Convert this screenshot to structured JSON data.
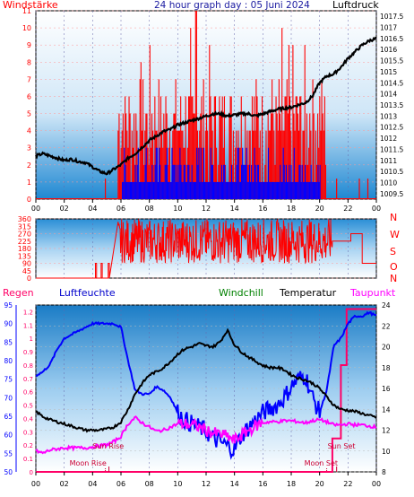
{
  "header": {
    "left_label": "Windstärke",
    "title": "24 hour graph day : 05 Juni 2024",
    "right_label": "Luftdruck"
  },
  "bottom_header": {
    "regen": "Regen",
    "luftfeuchte": "Luftfeuchte",
    "windchill": "Windchill",
    "temperatur": "Temperatur",
    "taupunkt": "Taupunkt"
  },
  "colors": {
    "wind_gust": "#ff0000",
    "wind_avg": "#0000ff",
    "pressure": "#000000",
    "direction": "#ff0000",
    "humidity": "#0000ff",
    "temperature": "#000000",
    "dewpoint": "#ff00ff",
    "rain": "#ff0066",
    "windchill": "#008000",
    "axis_left_top": "#ff0000",
    "axis_right_top": "#000000",
    "axis_rain": "#ff0066",
    "axis_humidity": "#0000ff",
    "axis_temp": "#000000",
    "background_top": "#ffffff",
    "background_bottom": "#1f86c8"
  },
  "chart_data": [
    {
      "type": "line",
      "name": "wind-pressure",
      "x_ticks": [
        "00",
        "02",
        "04",
        "06",
        "08",
        "10",
        "12",
        "14",
        "16",
        "18",
        "20",
        "22",
        "00"
      ],
      "wind_axis": {
        "ylim": [
          0,
          11
        ],
        "ticks": [
          "0",
          "1",
          "2",
          "3",
          "4",
          "5",
          "6",
          "7",
          "8",
          "9",
          "10",
          "11"
        ]
      },
      "pressure_axis": {
        "ylim": [
          1009.25,
          1017.75
        ],
        "ticks": [
          "1009.5",
          "1010",
          "1010.5",
          "1011",
          "1011.5",
          "1012",
          "1012.5",
          "1013",
          "1013.5",
          "1014",
          "1014.5",
          "1015",
          "1015.5",
          "1016",
          "1016.5",
          "1017",
          "1017.5"
        ]
      },
      "pressure": {
        "x": [
          0,
          0.5,
          1,
          1.5,
          2,
          2.5,
          3,
          3.5,
          4,
          4.5,
          5,
          5.5,
          6,
          6.5,
          7,
          7.5,
          8,
          8.5,
          9,
          9.5,
          10,
          10.5,
          11,
          11.5,
          12,
          12.5,
          13,
          13.5,
          14,
          14.5,
          15,
          15.5,
          16,
          16.5,
          17,
          17.5,
          18,
          18.5,
          19,
          19.5,
          20,
          20.5,
          21,
          21.5,
          22,
          22.5,
          23,
          23.5,
          24
        ],
        "y": [
          1011.2,
          1011.3,
          1011.2,
          1011.1,
          1011.0,
          1011.05,
          1010.95,
          1010.9,
          1010.7,
          1010.5,
          1010.4,
          1010.6,
          1010.8,
          1011.1,
          1011.3,
          1011.6,
          1011.9,
          1012.1,
          1012.3,
          1012.4,
          1012.6,
          1012.7,
          1012.8,
          1012.9,
          1013.0,
          1013.1,
          1013.1,
          1013.0,
          1013.05,
          1013.1,
          1013.1,
          1013.0,
          1013.1,
          1013.2,
          1013.3,
          1013.35,
          1013.4,
          1013.5,
          1013.6,
          1013.9,
          1014.5,
          1014.8,
          1014.9,
          1015.2,
          1015.6,
          1015.9,
          1016.2,
          1016.4,
          1016.5
        ]
      },
      "gust_peak": 11,
      "gust_active_hours": [
        5.8,
        20.5
      ],
      "avg_max": 4
    },
    {
      "type": "line",
      "name": "wind-direction",
      "x_ticks": [
        "00",
        "02",
        "04",
        "06",
        "08",
        "10",
        "12",
        "14",
        "16",
        "18",
        "20",
        "22",
        "00"
      ],
      "y_axis": {
        "ylim": [
          0,
          360
        ],
        "ticks": [
          "0",
          "45",
          "90",
          "135",
          "180",
          "225",
          "270",
          "315",
          "360"
        ]
      },
      "compass_labels": [
        "N",
        "W",
        "S",
        "O",
        "N"
      ],
      "early_spikes_hours": [
        4.2,
        4.6,
        5.1
      ],
      "calm_after_hour": 20.9,
      "tail": {
        "x": [
          20.9,
          22.2,
          22.2,
          23.0,
          23.0,
          24
        ],
        "y": [
          225,
          225,
          270,
          270,
          90,
          90
        ]
      }
    },
    {
      "type": "line",
      "name": "humidity-temperature",
      "x_ticks": [
        "00",
        "02",
        "04",
        "06",
        "08",
        "10",
        "12",
        "14",
        "16",
        "18",
        "20",
        "22",
        "00"
      ],
      "rain_axis": {
        "ylim": [
          0,
          1.25
        ],
        "ticks": [
          "0",
          "0.1",
          "0.2",
          "0.3",
          "0.4",
          "0.5",
          "0.6",
          "0.7",
          "0.8",
          "0.9",
          "1",
          "1.1",
          "1.2"
        ]
      },
      "humidity_axis": {
        "ylim": [
          50,
          95
        ],
        "ticks": [
          "50",
          "55",
          "60",
          "65",
          "70",
          "75",
          "80",
          "85",
          "90",
          "95"
        ]
      },
      "temp_axis": {
        "ylim": [
          8,
          24
        ],
        "ticks": [
          "8",
          "10",
          "12",
          "14",
          "16",
          "18",
          "20",
          "22",
          "24"
        ]
      },
      "humidity": {
        "x": [
          0,
          0.5,
          1,
          1.5,
          2,
          2.5,
          3,
          3.5,
          4,
          4.5,
          5,
          5.5,
          6,
          6.5,
          7,
          7.5,
          8,
          8.5,
          9,
          9.5,
          10,
          10.5,
          11,
          11.5,
          12,
          12.5,
          13,
          13.5,
          14,
          14.5,
          15,
          15.5,
          16,
          16.5,
          17,
          17.5,
          18,
          18.5,
          19,
          19.5,
          20,
          20.5,
          21,
          21.5,
          22,
          22.5,
          23,
          23.5,
          24
        ],
        "y": [
          76,
          77,
          79,
          83,
          86,
          87,
          88,
          89,
          90,
          90,
          90,
          90,
          89,
          80,
          72,
          71,
          71,
          73,
          72,
          70,
          66,
          64,
          63,
          62,
          61,
          59,
          58,
          57,
          56,
          60,
          62,
          64,
          66,
          67,
          68,
          70,
          73,
          75,
          76,
          70,
          66,
          72,
          84,
          86,
          90,
          92,
          92,
          93,
          92
        ]
      },
      "temperature": {
        "x": [
          0,
          0.5,
          1,
          1.5,
          2,
          2.5,
          3,
          3.5,
          4,
          4.5,
          5,
          5.5,
          6,
          6.5,
          7,
          7.5,
          8,
          8.5,
          9,
          9.5,
          10,
          10.5,
          11,
          11.5,
          12,
          12.5,
          13,
          13.5,
          14,
          14.5,
          15,
          15.5,
          16,
          16.5,
          17,
          17.5,
          18,
          18.5,
          19,
          19.5,
          20,
          20.5,
          21,
          21.5,
          22,
          22.5,
          23,
          23.5,
          24
        ],
        "y": [
          13.8,
          13.3,
          13.0,
          12.8,
          12.6,
          12.4,
          12.2,
          12.0,
          12.0,
          12.0,
          12.1,
          12.3,
          12.8,
          14.0,
          15.5,
          16.5,
          17.3,
          17.6,
          18.0,
          18.6,
          19.3,
          19.8,
          20.0,
          20.3,
          20.1,
          20.0,
          20.5,
          21.6,
          20.2,
          19.5,
          19.0,
          18.6,
          18.2,
          18.0,
          18.0,
          17.8,
          17.3,
          17.0,
          16.8,
          16.5,
          16.0,
          15.2,
          14.4,
          14.0,
          13.9,
          13.8,
          13.6,
          13.4,
          13.2
        ]
      },
      "dewpoint": {
        "x": [
          0,
          0.5,
          1,
          1.5,
          2,
          2.5,
          3,
          3.5,
          4,
          4.5,
          5,
          5.5,
          6,
          6.5,
          7,
          7.5,
          8,
          8.5,
          9,
          9.5,
          10,
          10.5,
          11,
          11.5,
          12,
          12.5,
          13,
          13.5,
          14,
          14.5,
          15,
          15.5,
          16,
          16.5,
          17,
          17.5,
          18,
          18.5,
          19,
          19.5,
          20,
          20.5,
          21,
          21.5,
          22,
          22.5,
          23,
          23.5,
          24
        ],
        "y": [
          10.0,
          9.8,
          10.1,
          10.2,
          10.3,
          10.3,
          10.3,
          10.3,
          10.4,
          10.5,
          10.6,
          10.9,
          11.4,
          12.6,
          13.2,
          12.7,
          12.3,
          11.9,
          12.0,
          12.3,
          12.6,
          12.6,
          12.5,
          12.3,
          12.0,
          11.7,
          11.6,
          11.4,
          11.0,
          11.5,
          12.0,
          12.4,
          12.7,
          12.8,
          12.8,
          12.9,
          12.9,
          12.8,
          12.7,
          12.9,
          13.0,
          12.8,
          12.5,
          12.5,
          12.6,
          12.5,
          12.5,
          12.4,
          12.3
        ]
      },
      "rain_accum": {
        "x": [
          0,
          20.9,
          20.9,
          21.5,
          21.5,
          21.9,
          21.9,
          24
        ],
        "y": [
          0,
          0,
          0.25,
          0.25,
          0.8,
          0.8,
          1.22,
          1.22
        ]
      },
      "annotations": {
        "sunrise": {
          "label": "Sun Rise",
          "hour": 5.15
        },
        "sunset": {
          "label": "Sun Set",
          "hour": 21.2
        },
        "moonrise": {
          "label": "Moon Rise",
          "hour": 4.9
        },
        "moonset": {
          "label": "Moon Set",
          "hour": 20.5
        }
      }
    }
  ]
}
